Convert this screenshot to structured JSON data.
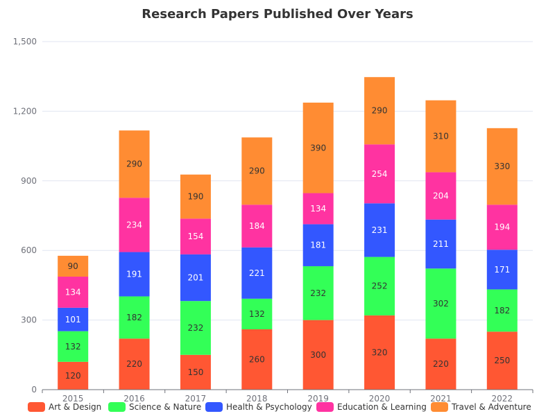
{
  "chart_data": {
    "type": "bar",
    "stacked": true,
    "title": "Research Papers Published Over Years",
    "xlabel": "",
    "ylabel": "",
    "ylim": [
      0,
      1500
    ],
    "yticks": [
      "0",
      "300",
      "600",
      "900",
      "1,200",
      "1,500"
    ],
    "categories": [
      "2015",
      "2016",
      "2017",
      "2018",
      "2019",
      "2020",
      "2021",
      "2022"
    ],
    "series": [
      {
        "name": "Art & Design",
        "color": "#ff5733",
        "values": [
          120,
          220,
          150,
          260,
          300,
          320,
          220,
          250
        ]
      },
      {
        "name": "Science & Nature",
        "color": "#33ff57",
        "values": [
          132,
          182,
          232,
          132,
          232,
          252,
          302,
          182
        ]
      },
      {
        "name": "Health & Psychology",
        "color": "#3357ff",
        "values": [
          101,
          191,
          201,
          221,
          181,
          231,
          211,
          171
        ]
      },
      {
        "name": "Education & Learning",
        "color": "#ff33a1",
        "values": [
          134,
          234,
          154,
          184,
          134,
          254,
          204,
          194
        ]
      },
      {
        "name": "Travel & Adventure",
        "color": "#ff8c33",
        "values": [
          90,
          290,
          190,
          290,
          390,
          290,
          310,
          330
        ]
      }
    ],
    "grid": true,
    "legend_position": "bottom"
  }
}
